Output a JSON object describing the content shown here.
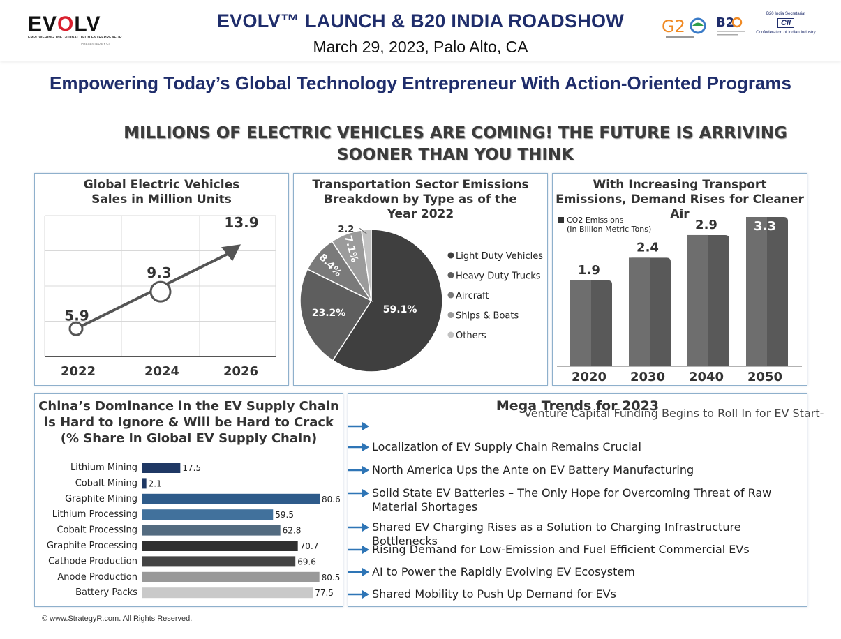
{
  "header": {
    "logo_text": "EVOLV",
    "logo_tagline": "EMPOWERING THE GLOBAL TECH ENTREPRENEUR",
    "logo_presented": "PRESENTED BY",
    "logo_presenter": "CII",
    "title": "EVOLV™ LAUNCH & B20 INDIA ROADSHOW",
    "subtitle": "March 29, 2023, Palo Alto, CA",
    "g20_text": "G20",
    "b20_text": "B20",
    "cii_top": "B20 India Secretariat",
    "cii_box": "CII",
    "cii_bottom": "Confederation of Indian Industry"
  },
  "tagline": "Empowering Today’s Global Technology Entrepreneur With Action-Oriented Programs",
  "main_heading": "MILLIONS OF ELECTRIC VEHICLES ARE COMING! THE FUTURE IS ARRIVING SOONER THAN YOU THINK",
  "panels": {
    "ev_sales_title": "Global Electric Vehicles Sales in Million Units",
    "emissions_title": "Transportation Sector Emissions Breakdown by Type as of the Year 2022",
    "co2_title": "With Increasing Transport Emissions, Demand Rises for Cleaner Air",
    "co2_legend": "CO2 Emissions",
    "co2_legend_unit": "(In Billion Metric Tons)",
    "china_title": "China’s Dominance in the EV Supply Chain is Hard to Ignore & Will be Hard to Crack (% Share in Global EV Supply Chain)"
  },
  "trends": {
    "heading": "Mega Trends for 2023",
    "overlap_text": "Venture Capital Funding Begins to Roll In for EV Start-",
    "items": [
      "",
      "Localization of EV Supply Chain Remains Crucial",
      "North America Ups the Ante on EV Battery Manufacturing",
      "Solid State EV Batteries – The Only Hope for Overcoming Threat of Raw Material Shortages",
      "Shared EV Charging Rises as a Solution to Charging Infrastructure Bottlenecks",
      "Rising Demand for Low-Emission and Fuel Efficient Commercial EVs",
      "AI to Power the Rapidly Evolving EV Ecosystem",
      "Shared Mobility to Push Up Demand for EVs"
    ],
    "arrow_color": "#2e75b6"
  },
  "footer": "© www.StrategyR.com. All Rights Reserved.",
  "chart_data": [
    {
      "type": "line",
      "title": "Global Electric Vehicles Sales in Million Units",
      "x": [
        "2022",
        "2024",
        "2026"
      ],
      "y": [
        5.9,
        9.3,
        13.9
      ],
      "grid": true
    },
    {
      "type": "pie",
      "title": "Transportation Sector Emissions Breakdown by Type as of the Year 2022",
      "labels": [
        "Light Duty Vehicles",
        "Heavy Duty Trucks",
        "Aircraft",
        "Ships & Boats",
        "Others"
      ],
      "values": [
        59.1,
        23.2,
        8.4,
        7.1,
        2.2
      ],
      "value_labels": [
        "59.1%",
        "23.2%",
        "8.4%",
        "7.1%",
        "2.2"
      ],
      "colors": [
        "#3f3f3f",
        "#5e5e5e",
        "#7a7a7a",
        "#9b9b9b",
        "#c2c2c2"
      ],
      "legend": "right"
    },
    {
      "type": "bar",
      "title": "With Increasing Transport Emissions, Demand Rises for Cleaner Air",
      "categories": [
        "2020",
        "2030",
        "2040",
        "2050"
      ],
      "series": [
        {
          "name": "CO2 Emissions (In Billion Metric Tons)",
          "values": [
            1.9,
            2.4,
            2.9,
            3.3
          ]
        }
      ],
      "legend": "top-left"
    },
    {
      "type": "bar",
      "orientation": "horizontal",
      "title": "China’s Dominance in the EV Supply Chain is Hard to Ignore & Will be Hard to Crack (% Share in Global EV Supply Chain)",
      "categories": [
        "Lithium Mining",
        "Cobalt Mining",
        "Graphite Mining",
        "Lithium Processing",
        "Cobalt Processing",
        "Graphite Processing",
        "Cathode Production",
        "Anode Production",
        "Battery Packs"
      ],
      "values": [
        17.5,
        2.1,
        80.6,
        59.5,
        62.8,
        70.7,
        69.6,
        80.5,
        77.5
      ],
      "labels": [
        "17.5",
        "2.1",
        "80.6",
        "59.5",
        "62.8",
        "70.7",
        "69.6",
        "80.5",
        "77.5"
      ],
      "colors": [
        "#1f3864",
        "#1f3864",
        "#2e5b8a",
        "#41719c",
        "#536b80",
        "#2f2f2f",
        "#444444",
        "#999999",
        "#c9c9c9"
      ]
    }
  ]
}
